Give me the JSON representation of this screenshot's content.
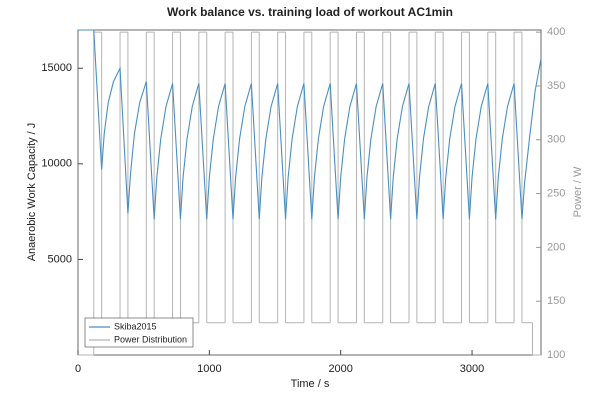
{
  "chart_data": {
    "type": "line",
    "title": "Work balance vs. training load of workout  AC1min",
    "x_label": "Time / s",
    "y_label": "Anaerobic Work Capacity / J",
    "y2_label": "Power / W",
    "xlim": [
      0,
      3525
    ],
    "xticks": [
      0,
      1000,
      2000,
      3000
    ],
    "ylim": [
      0,
      17000
    ],
    "yticks": [
      5000,
      10000,
      15000
    ],
    "y2lim": [
      100,
      402
    ],
    "y2ticks": [
      100,
      150,
      200,
      250,
      300,
      350,
      400
    ],
    "legend": "lower left",
    "series": [
      {
        "name": "Skiba2015",
        "color": "#4a8fc0",
        "axis": "y",
        "x": [
          0,
          120,
          180,
          200,
          230,
          270,
          320,
          380,
          400,
          430,
          470,
          520,
          580,
          600,
          630,
          670,
          720,
          780,
          800,
          830,
          870,
          920,
          980,
          1000,
          1030,
          1070,
          1120,
          1180,
          1200,
          1230,
          1270,
          1320,
          1380,
          1400,
          1430,
          1470,
          1520,
          1580,
          1600,
          1630,
          1670,
          1720,
          1780,
          1800,
          1830,
          1870,
          1920,
          1980,
          2000,
          2030,
          2070,
          2120,
          2180,
          2200,
          2230,
          2270,
          2320,
          2380,
          2400,
          2430,
          2470,
          2520,
          2580,
          2600,
          2630,
          2670,
          2720,
          2780,
          2800,
          2830,
          2870,
          2920,
          2980,
          3000,
          3030,
          3070,
          3120,
          3180,
          3200,
          3230,
          3270,
          3320,
          3380,
          3400,
          3440,
          3480,
          3525
        ],
        "values": [
          17000,
          17000,
          9700,
          11600,
          13200,
          14300,
          15000,
          7400,
          9500,
          11600,
          13200,
          14300,
          7100,
          9300,
          11300,
          13000,
          14200,
          7100,
          9300,
          11300,
          13000,
          14200,
          7100,
          9300,
          11300,
          13000,
          14200,
          7100,
          9300,
          11300,
          13000,
          14200,
          7100,
          9300,
          11300,
          13000,
          14200,
          7100,
          9300,
          11300,
          13000,
          14200,
          7100,
          9300,
          11300,
          13000,
          14200,
          7100,
          9300,
          11300,
          13000,
          14200,
          7100,
          9300,
          11300,
          13000,
          14200,
          7100,
          9300,
          11300,
          13000,
          14200,
          7100,
          9300,
          11300,
          13000,
          14200,
          7100,
          9300,
          11300,
          13000,
          14200,
          7100,
          9300,
          11300,
          13000,
          14200,
          7100,
          9300,
          11300,
          13000,
          14200,
          7100,
          9000,
          11500,
          13800,
          15500
        ]
      },
      {
        "name": "Power Distribution",
        "color": "#b4b4b4",
        "axis": "y2",
        "drawstyle": "steps-post",
        "x": [
          0,
          120,
          180,
          320,
          380,
          520,
          580,
          720,
          780,
          920,
          980,
          1120,
          1180,
          1320,
          1380,
          1520,
          1580,
          1720,
          1780,
          1920,
          1980,
          2120,
          2180,
          2320,
          2380,
          2520,
          2580,
          2720,
          2780,
          2920,
          2980,
          3120,
          3180,
          3320,
          3380,
          3460,
          3525
        ],
        "values": [
          100,
          400,
          130,
          400,
          130,
          400,
          130,
          400,
          130,
          400,
          130,
          400,
          130,
          400,
          130,
          400,
          130,
          400,
          130,
          400,
          130,
          400,
          130,
          400,
          130,
          400,
          130,
          400,
          130,
          400,
          130,
          400,
          130,
          400,
          130,
          100,
          100
        ]
      }
    ]
  }
}
